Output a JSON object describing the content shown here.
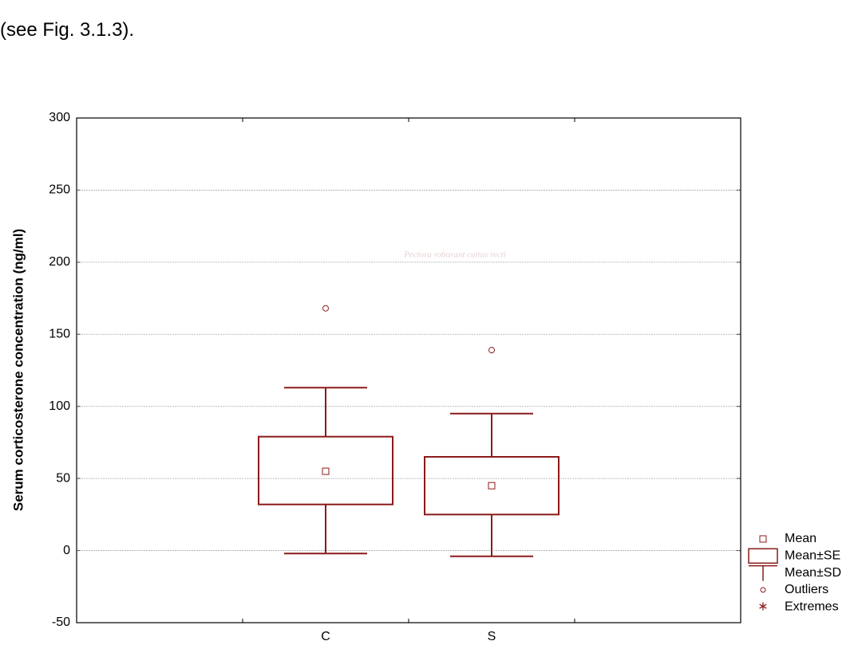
{
  "document_text": "(see Fig. 3.1.3).",
  "watermark_text": "Pectora roborant cultus recti",
  "chart_data": {
    "type": "box",
    "y_label": "Serum corticosterone concentration (ng/ml)",
    "categories": [
      "C",
      "S"
    ],
    "mean": [
      55,
      45
    ],
    "se_low": [
      32,
      25
    ],
    "se_high": [
      79,
      65
    ],
    "sd_low": [
      -2,
      -4
    ],
    "sd_high": [
      113,
      95
    ],
    "outliers": [
      [
        168
      ],
      [
        139
      ]
    ],
    "color": "#8b1a1a",
    "ylim": [
      -50,
      300
    ],
    "yticks": [
      -50,
      0,
      50,
      100,
      150,
      200,
      250,
      300
    ],
    "grid": true,
    "legend": [
      "Mean",
      "Mean±SE",
      "Mean±SD",
      "Outliers",
      "Extremes"
    ]
  }
}
